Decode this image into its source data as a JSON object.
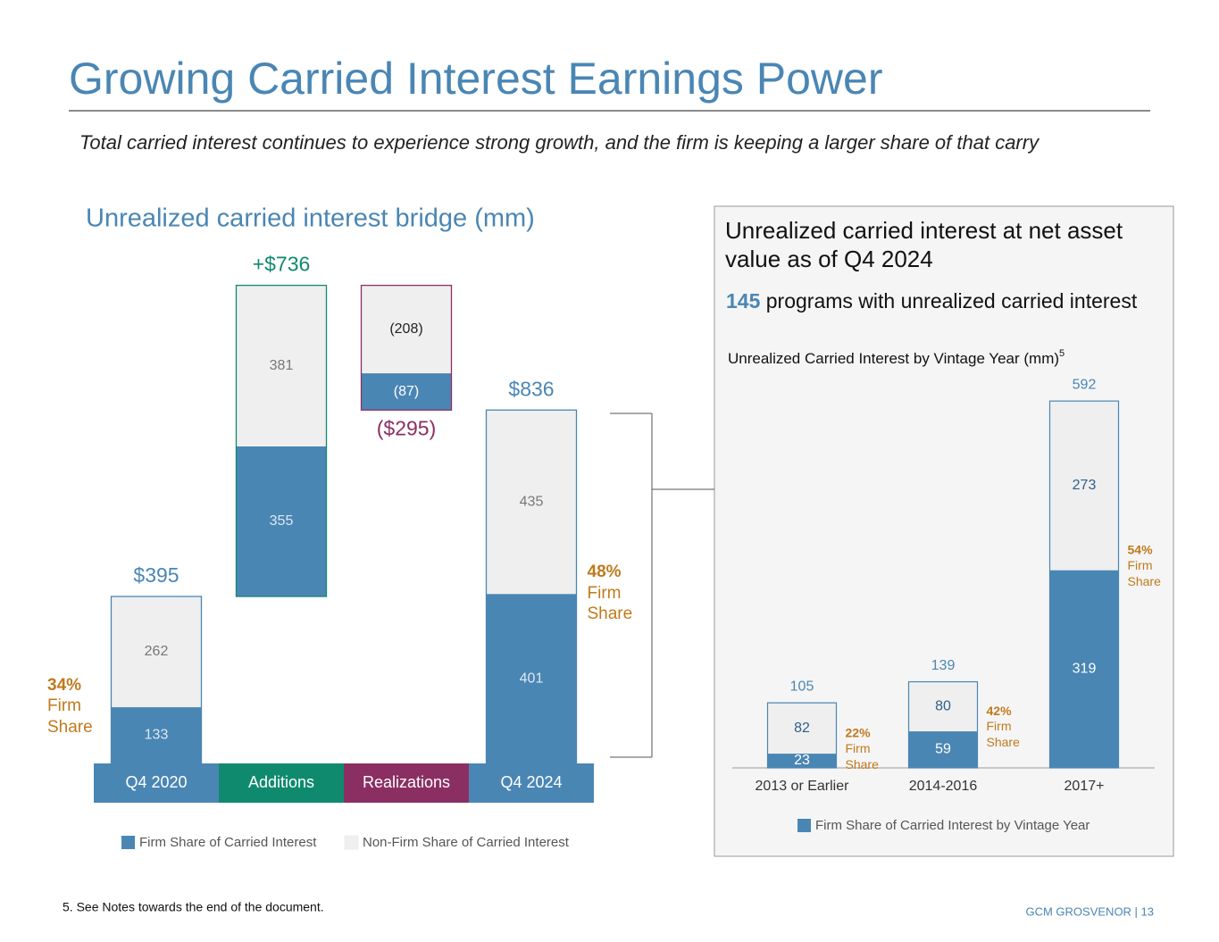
{
  "header": {
    "title": "Growing Carried Interest Earnings Power",
    "subtitle": "Total carried interest continues to experience strong growth, and the firm is keeping a larger share of that carry"
  },
  "panel": {
    "heading": "Unrealized carried interest at net asset value as of Q4 2024",
    "programs_count": 145,
    "programs_text": "programs with unrealized carried interest"
  },
  "chart_data": [
    {
      "type": "waterfall",
      "title": "Unrealized carried interest bridge (mm)",
      "categories": [
        "Q4 2020",
        "Additions",
        "Realizations",
        "Q4 2024"
      ],
      "category_colors": [
        "#4a86b4",
        "#0f8a6f",
        "#8b2f63",
        "#4a86b4"
      ],
      "series": [
        {
          "name": "Firm Share of Carried Interest",
          "color": "#4a86b4",
          "values": [
            133,
            355,
            -87,
            401
          ],
          "value_labels": [
            "133",
            "355",
            "(87)",
            "401"
          ]
        },
        {
          "name": "Non-Firm Share of Carried Interest",
          "color": "#efefef",
          "values": [
            262,
            381,
            -208,
            435
          ],
          "value_labels": [
            "262",
            "381",
            "(208)",
            "435"
          ]
        }
      ],
      "totals": [
        395,
        736,
        -295,
        836
      ],
      "total_labels": [
        "$395",
        "+$736",
        "($295)",
        "$836"
      ],
      "firm_share": [
        {
          "value": 34,
          "label": "34%"
        },
        null,
        null,
        {
          "value": 48,
          "label": "48%"
        }
      ],
      "firm_share_text": "Firm Share",
      "annotation_color": "#c07a1c"
    },
    {
      "type": "stacked_bar",
      "title": "Unrealized Carried Interest by Vintage Year (mm)",
      "title_note": "5",
      "categories": [
        "2013 or Earlier",
        "2014-2016",
        "2017+"
      ],
      "series": [
        {
          "name": "Firm Share of Carried Interest by Vintage Year",
          "color": "#4a86b4",
          "values": [
            23,
            59,
            319
          ]
        },
        {
          "color": "#efefef",
          "values": [
            82,
            80,
            273
          ]
        }
      ],
      "totals": [
        105,
        139,
        592
      ],
      "firm_share": [
        {
          "value": 22,
          "label": "22%"
        },
        {
          "value": 42,
          "label": "42%"
        },
        {
          "value": 54,
          "label": "54%"
        }
      ],
      "firm_share_text": "Firm Share",
      "annotation_color": "#c07a1c"
    }
  ],
  "footer": {
    "note": "5. See Notes towards the end of the document.",
    "brand": "GCM GROSVENOR | 13"
  }
}
